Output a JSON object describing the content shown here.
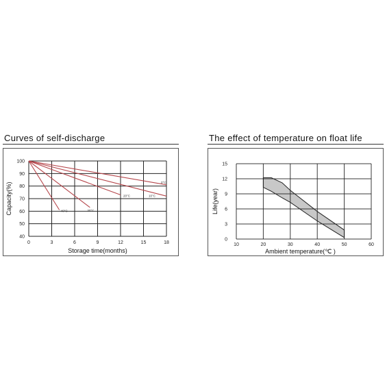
{
  "chart_data": [
    {
      "type": "line",
      "title": "Curves of self-discharge",
      "xlabel": "Storage time(months)",
      "ylabel": "Capacity(%)",
      "xlim": [
        0,
        18
      ],
      "ylim": [
        40,
        100
      ],
      "xticks": [
        0,
        3,
        6,
        9,
        12,
        15,
        18
      ],
      "yticks": [
        40,
        50,
        60,
        70,
        80,
        90,
        100
      ],
      "grid": true,
      "series_color": "#b5454a",
      "series": [
        {
          "name": "0°C",
          "x": [
            0,
            18
          ],
          "y": [
            100,
            81
          ]
        },
        {
          "name": "10°C",
          "x": [
            0,
            18
          ],
          "y": [
            100,
            72
          ]
        },
        {
          "name": "20°C",
          "x": [
            0,
            12
          ],
          "y": [
            100,
            73
          ]
        },
        {
          "name": "30°C",
          "x": [
            0,
            8
          ],
          "y": [
            100,
            63
          ]
        },
        {
          "name": "40°C",
          "x": [
            0,
            4
          ],
          "y": [
            100,
            61
          ]
        }
      ]
    },
    {
      "type": "area",
      "title": "The effect of temperature on float  life",
      "xlabel": "Ambient temperature(℃ )",
      "ylabel": "Life(year)",
      "xlim": [
        10,
        60
      ],
      "ylim": [
        0,
        15
      ],
      "xticks": [
        10,
        20,
        30,
        40,
        50,
        60
      ],
      "yticks": [
        0,
        3,
        6,
        9,
        12,
        15
      ],
      "grid": true,
      "fill_color": "#c8c8c8",
      "band": {
        "x": [
          20,
          23,
          27,
          30,
          40,
          50
        ],
        "upper": [
          12.2,
          12.2,
          11.2,
          9.7,
          5.5,
          1.8
        ],
        "lower": [
          10.3,
          9.5,
          8.2,
          7.3,
          3.6,
          0.3
        ]
      }
    }
  ]
}
